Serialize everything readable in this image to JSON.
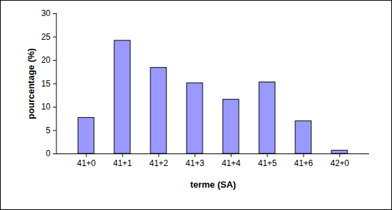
{
  "chart_data": {
    "type": "bar",
    "x_label": "terme (SA)",
    "y_label": "pourcentage (%)",
    "categories": [
      "41+0",
      "41+1",
      "41+2",
      "41+3",
      "41+4",
      "41+5",
      "41+6",
      "42+0"
    ],
    "values": [
      7.7,
      24.2,
      18.4,
      15.1,
      11.6,
      15.3,
      7.0,
      0.7
    ],
    "color": "#9999ff",
    "ylim": [
      0,
      30
    ],
    "yticks": [
      0,
      5,
      10,
      15,
      20,
      25,
      30
    ],
    "grid": false
  }
}
